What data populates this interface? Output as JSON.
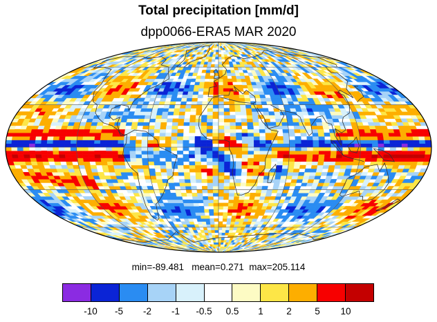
{
  "title": "Total precipitation [mm/d]",
  "subtitle": "dpp0066-ERA5 MAR 2020",
  "stats": {
    "min_label": "min=",
    "min": "-89.481",
    "mean_label": "mean=",
    "mean": "0.271",
    "max_label": "max=",
    "max": "205.114"
  },
  "map": {
    "projection": "mollweide",
    "field": "precipitation difference (model minus ERA5)",
    "coastlines_color": "#333333",
    "graticule_color": "#555555",
    "grid": true
  },
  "colorbar": {
    "labels": [
      "-10",
      "-5",
      "-2",
      "-1",
      "-0.5",
      "0.5",
      "1",
      "2",
      "5",
      "10"
    ],
    "colors": [
      "#8b2be2",
      "#0b24d6",
      "#2a8cf2",
      "#a7d3f7",
      "#d8f1fb",
      "#ffffff",
      "#fdfbc4",
      "#fde647",
      "#fdae00",
      "#f70000",
      "#c40000"
    ]
  }
}
